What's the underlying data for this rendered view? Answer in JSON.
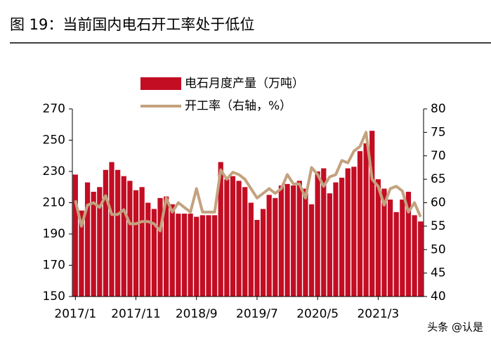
{
  "chart_data": {
    "type": "bar+line",
    "title": "图 19：当前国内电石开工率处于低位",
    "watermark": "头条 @认是",
    "categories": [
      "2017/1",
      null,
      null,
      null,
      null,
      null,
      null,
      null,
      null,
      null,
      "2017/11",
      null,
      null,
      null,
      null,
      null,
      null,
      null,
      null,
      null,
      "2018/9",
      null,
      null,
      null,
      null,
      null,
      null,
      null,
      null,
      null,
      "2019/7",
      null,
      null,
      null,
      null,
      null,
      null,
      null,
      null,
      null,
      "2020/5",
      null,
      null,
      null,
      null,
      null,
      null,
      null,
      null,
      null,
      "2021/3",
      null,
      null,
      null,
      null,
      null,
      null,
      null
    ],
    "series": [
      {
        "name": "电石月度产量（万吨）",
        "type": "bar",
        "color": "#c30d23",
        "values": [
          228,
          205,
          223,
          217,
          220,
          231,
          236,
          231,
          227,
          224,
          218,
          220,
          210,
          206,
          213,
          214,
          209,
          203,
          203,
          203,
          201,
          202,
          202,
          202,
          236,
          225,
          227,
          224,
          220,
          210,
          199,
          206,
          215,
          213,
          221,
          222,
          221,
          224,
          219,
          209,
          230,
          232,
          216,
          223,
          226,
          232,
          233,
          243,
          248,
          256,
          225,
          219,
          212,
          204,
          212,
          217,
          202,
          198
        ]
      },
      {
        "name": "开工率（右轴，%）",
        "type": "line",
        "axis": "y2",
        "color": "#c4a27f",
        "values": [
          60.5,
          55,
          59.5,
          60,
          59,
          61.5,
          57.5,
          57.5,
          58.5,
          55.5,
          55.5,
          56,
          56,
          55.5,
          54,
          61,
          58,
          60,
          59,
          58,
          63,
          58,
          58,
          58,
          67,
          65,
          66.5,
          66,
          65,
          63,
          61,
          62,
          63,
          62,
          63,
          66,
          64,
          64,
          61,
          67.5,
          66,
          63.5,
          65.5,
          66,
          69,
          68.5,
          71,
          72,
          75,
          65,
          63.5,
          59.5,
          63,
          63.5,
          62.5,
          58,
          60,
          57
        ]
      }
    ],
    "ylim": [
      150,
      270
    ],
    "yticks": [
      150,
      170,
      190,
      210,
      230,
      250,
      270
    ],
    "y2lim": [
      40,
      80
    ],
    "y2ticks": [
      40,
      45,
      50,
      55,
      60,
      65,
      70,
      75,
      80
    ]
  }
}
